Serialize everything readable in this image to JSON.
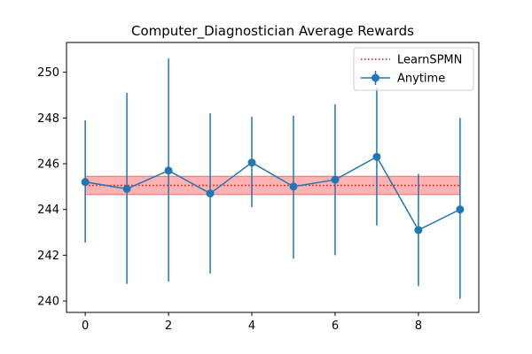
{
  "chart_data": {
    "type": "line",
    "title": "Computer_Diagnostician Average Rewards",
    "xlabel": "",
    "ylabel": "",
    "x": [
      0,
      1,
      2,
      3,
      4,
      5,
      6,
      7,
      8,
      9
    ],
    "xlim": [
      -0.45,
      9.45
    ],
    "ylim": [
      239.5,
      251.3
    ],
    "xticks": [
      0,
      2,
      4,
      6,
      8
    ],
    "yticks": [
      240,
      242,
      244,
      246,
      248,
      250
    ],
    "series": [
      {
        "name": "Anytime",
        "color": "#1f77b4",
        "marker": "circle",
        "values": [
          245.2,
          244.9,
          245.7,
          244.7,
          246.05,
          245.0,
          245.3,
          246.3,
          243.1,
          244.0
        ],
        "error_low": [
          242.55,
          240.75,
          240.85,
          241.2,
          244.1,
          241.85,
          242.0,
          243.3,
          240.65,
          240.1
        ],
        "error_high": [
          247.9,
          249.1,
          250.6,
          248.2,
          248.05,
          248.1,
          248.6,
          249.35,
          245.55,
          248.0
        ]
      },
      {
        "name": "LearnSPMN",
        "color": "#ff0000",
        "style": "dotted",
        "value": 245.05,
        "band": [
          244.65,
          245.45
        ],
        "band_color": "#ff0000"
      }
    ],
    "legend": {
      "position": "top-right",
      "entries": [
        "LearnSPMN",
        "Anytime"
      ]
    },
    "grid": false
  }
}
